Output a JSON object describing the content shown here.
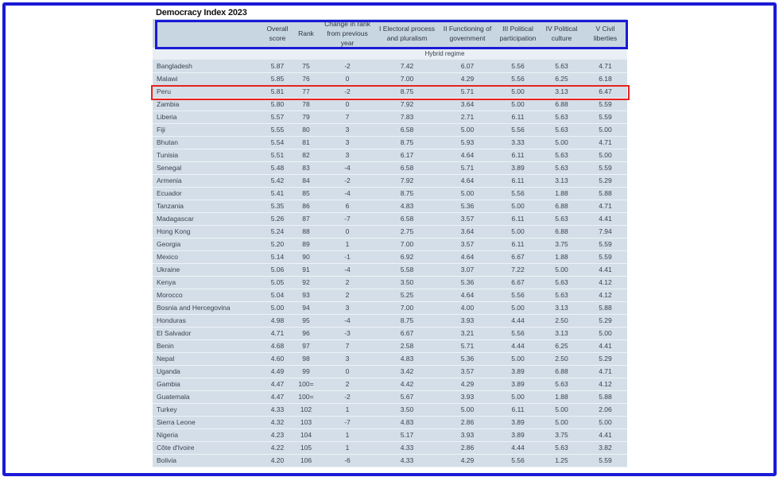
{
  "title": "Democracy Index 2023",
  "columns": [
    "",
    "Overall score",
    "Rank",
    "Change in rank from previous year",
    "I Electoral process and pluralism",
    "II Functioning of government",
    "III Political participation",
    "IV Political culture",
    "V Civil liberties"
  ],
  "section_label": "Hybrid regime",
  "highlighted_country": "Peru",
  "colors": {
    "frame": "#1a1ad6",
    "highlight": "#e8231f",
    "row_bg": "#d3dee8",
    "header_bg": "#c8d6e2"
  },
  "rows": [
    [
      "Bangladesh",
      "5.87",
      "75",
      "-2",
      "7.42",
      "6.07",
      "5.56",
      "5.63",
      "4.71"
    ],
    [
      "Malawi",
      "5.85",
      "76",
      "0",
      "7.00",
      "4.29",
      "5.56",
      "6.25",
      "6.18"
    ],
    [
      "Peru",
      "5.81",
      "77",
      "-2",
      "8.75",
      "5.71",
      "5.00",
      "3.13",
      "6.47"
    ],
    [
      "Zambia",
      "5.80",
      "78",
      "0",
      "7.92",
      "3.64",
      "5.00",
      "6.88",
      "5.59"
    ],
    [
      "Liberia",
      "5.57",
      "79",
      "7",
      "7.83",
      "2.71",
      "6.11",
      "5.63",
      "5.59"
    ],
    [
      "Fiji",
      "5.55",
      "80",
      "3",
      "6.58",
      "5.00",
      "5.56",
      "5.63",
      "5.00"
    ],
    [
      "Bhutan",
      "5.54",
      "81",
      "3",
      "8.75",
      "5.93",
      "3.33",
      "5.00",
      "4.71"
    ],
    [
      "Tunisia",
      "5.51",
      "82",
      "3",
      "6.17",
      "4.64",
      "6.11",
      "5.63",
      "5.00"
    ],
    [
      "Senegal",
      "5.48",
      "83",
      "-4",
      "6.58",
      "5.71",
      "3.89",
      "5.63",
      "5.59"
    ],
    [
      "Armenia",
      "5.42",
      "84",
      "-2",
      "7.92",
      "4.64",
      "6.11",
      "3.13",
      "5.29"
    ],
    [
      "Ecuador",
      "5.41",
      "85",
      "-4",
      "8.75",
      "5.00",
      "5.56",
      "1.88",
      "5.88"
    ],
    [
      "Tanzania",
      "5.35",
      "86",
      "6",
      "4.83",
      "5.36",
      "5.00",
      "6.88",
      "4.71"
    ],
    [
      "Madagascar",
      "5.26",
      "87",
      "-7",
      "6.58",
      "3.57",
      "6.11",
      "5.63",
      "4.41"
    ],
    [
      "Hong Kong",
      "5.24",
      "88",
      "0",
      "2.75",
      "3.64",
      "5.00",
      "6.88",
      "7.94"
    ],
    [
      "Georgia",
      "5.20",
      "89",
      "1",
      "7.00",
      "3.57",
      "6.11",
      "3.75",
      "5.59"
    ],
    [
      "Mexico",
      "5.14",
      "90",
      "-1",
      "6.92",
      "4.64",
      "6.67",
      "1.88",
      "5.59"
    ],
    [
      "Ukraine",
      "5.06",
      "91",
      "-4",
      "5.58",
      "3.07",
      "7.22",
      "5.00",
      "4.41"
    ],
    [
      "Kenya",
      "5.05",
      "92",
      "2",
      "3.50",
      "5.36",
      "6.67",
      "5.63",
      "4.12"
    ],
    [
      "Morocco",
      "5.04",
      "93",
      "2",
      "5.25",
      "4.64",
      "5.56",
      "5.63",
      "4.12"
    ],
    [
      "Bosnia and Hercegovina",
      "5.00",
      "94",
      "3",
      "7.00",
      "4.00",
      "5.00",
      "3.13",
      "5.88"
    ],
    [
      "Honduras",
      "4.98",
      "95",
      "-4",
      "8.75",
      "3.93",
      "4.44",
      "2.50",
      "5.29"
    ],
    [
      "El Salvador",
      "4.71",
      "96",
      "-3",
      "6.67",
      "3.21",
      "5.56",
      "3.13",
      "5.00"
    ],
    [
      "Benin",
      "4.68",
      "97",
      "7",
      "2.58",
      "5.71",
      "4.44",
      "6.25",
      "4.41"
    ],
    [
      "Nepal",
      "4.60",
      "98",
      "3",
      "4.83",
      "5.36",
      "5.00",
      "2.50",
      "5.29"
    ],
    [
      "Uganda",
      "4.49",
      "99",
      "0",
      "3.42",
      "3.57",
      "3.89",
      "6.88",
      "4.71"
    ],
    [
      "Gambia",
      "4.47",
      "100=",
      "2",
      "4.42",
      "4.29",
      "3.89",
      "5.63",
      "4.12"
    ],
    [
      "Guatemala",
      "4.47",
      "100=",
      "-2",
      "5.67",
      "3.93",
      "5.00",
      "1.88",
      "5.88"
    ],
    [
      "Turkey",
      "4.33",
      "102",
      "1",
      "3.50",
      "5.00",
      "6.11",
      "5.00",
      "2.06"
    ],
    [
      "Sierra Leone",
      "4.32",
      "103",
      "-7",
      "4.83",
      "2.86",
      "3.89",
      "5.00",
      "5.00"
    ],
    [
      "Nigeria",
      "4.23",
      "104",
      "1",
      "5.17",
      "3.93",
      "3.89",
      "3.75",
      "4.41"
    ],
    [
      "Côte d'Ivoire",
      "4.22",
      "105",
      "1",
      "4.33",
      "2.86",
      "4.44",
      "5.63",
      "3.82"
    ],
    [
      "Bolivia",
      "4.20",
      "106",
      "-6",
      "4.33",
      "4.29",
      "5.56",
      "1.25",
      "5.59"
    ]
  ]
}
